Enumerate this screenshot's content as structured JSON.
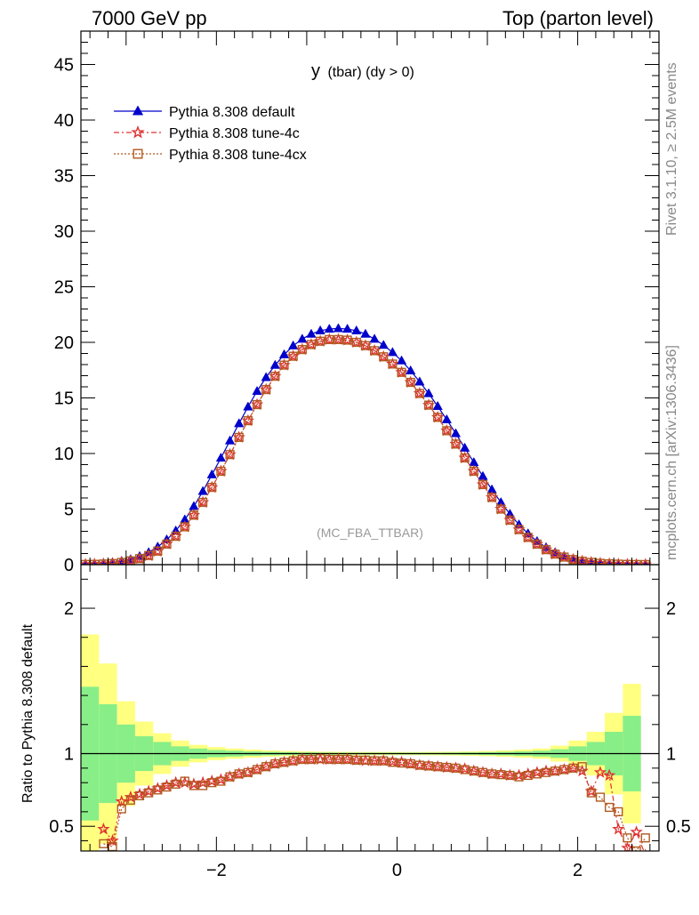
{
  "header": {
    "left": "7000 GeV pp",
    "right": "Top (parton level)"
  },
  "side_labels": {
    "rivet": "Rivet 3.1.10, ≥ 2.5M events",
    "mcplots": "mcplots.cern.ch [arXiv:1306.3436]"
  },
  "chart_data": [
    {
      "type": "line",
      "panel": "main",
      "title": "y (tbar) (dy > 0)",
      "title_main": "y",
      "title_sub": "(tbar) (dy > 0)",
      "annotation": "(MC_FBA_TTBAR)",
      "xlabel": "",
      "ylabel": "",
      "xlim": [
        -3.5,
        2.9
      ],
      "ylim": [
        0,
        48
      ],
      "yticks": [
        0,
        5,
        10,
        15,
        20,
        25,
        30,
        35,
        40,
        45
      ],
      "xticks": [
        -2,
        0,
        2
      ],
      "legend_position": "top-left",
      "x": [
        -3.45,
        -3.35,
        -3.25,
        -3.15,
        -3.05,
        -2.95,
        -2.85,
        -2.75,
        -2.65,
        -2.55,
        -2.45,
        -2.35,
        -2.25,
        -2.15,
        -2.05,
        -1.95,
        -1.85,
        -1.75,
        -1.65,
        -1.55,
        -1.45,
        -1.35,
        -1.25,
        -1.15,
        -1.05,
        -0.95,
        -0.85,
        -0.75,
        -0.65,
        -0.55,
        -0.45,
        -0.35,
        -0.25,
        -0.15,
        -0.05,
        0.05,
        0.15,
        0.25,
        0.35,
        0.45,
        0.55,
        0.65,
        0.75,
        0.85,
        0.95,
        1.05,
        1.15,
        1.25,
        1.35,
        1.45,
        1.55,
        1.65,
        1.75,
        1.85,
        1.95,
        2.05,
        2.15,
        2.25,
        2.35,
        2.45,
        2.55,
        2.65,
        2.75
      ],
      "series": [
        {
          "name": "Pythia 8.308 default",
          "color": "#0000cc",
          "marker": "triangle",
          "values": [
            0.05,
            0.08,
            0.13,
            0.2,
            0.32,
            0.48,
            0.75,
            1.1,
            1.6,
            2.25,
            3.05,
            4.05,
            5.25,
            6.6,
            8.1,
            9.6,
            11.15,
            12.7,
            14.2,
            15.6,
            16.85,
            17.95,
            18.9,
            19.7,
            20.3,
            20.75,
            21.05,
            21.2,
            21.25,
            21.2,
            21.05,
            20.75,
            20.3,
            19.75,
            19.1,
            18.35,
            17.45,
            16.45,
            15.4,
            14.25,
            13.05,
            11.8,
            10.5,
            9.2,
            7.95,
            6.75,
            5.6,
            4.55,
            3.6,
            2.8,
            2.1,
            1.55,
            1.1,
            0.78,
            0.53,
            0.36,
            0.24,
            0.16,
            0.1,
            0.065,
            0.04,
            0.025,
            0.015
          ]
        },
        {
          "name": "Pythia 8.308 tune-4c",
          "color": "#e03030",
          "marker": "star",
          "values": [
            0.02,
            0.03,
            0.06,
            0.1,
            0.2,
            0.33,
            0.53,
            0.8,
            1.2,
            1.85,
            2.55,
            3.4,
            4.45,
            5.6,
            6.95,
            8.4,
            9.9,
            11.45,
            12.95,
            14.4,
            15.75,
            16.95,
            17.95,
            18.75,
            19.35,
            19.8,
            20.1,
            20.25,
            20.25,
            20.2,
            20.0,
            19.7,
            19.25,
            18.7,
            18.05,
            17.3,
            16.4,
            15.4,
            14.35,
            13.25,
            12.05,
            10.85,
            9.6,
            8.4,
            7.2,
            6.05,
            5.0,
            4.0,
            3.15,
            2.45,
            1.85,
            1.35,
            0.95,
            0.68,
            0.46,
            0.31,
            0.2,
            0.12,
            0.075,
            0.045,
            0.025,
            0.015,
            0.01
          ]
        },
        {
          "name": "Pythia 8.308 tune-4cx",
          "color": "#b05a20",
          "marker": "square",
          "values": [
            0.02,
            0.03,
            0.06,
            0.1,
            0.2,
            0.34,
            0.54,
            0.82,
            1.22,
            1.85,
            2.55,
            3.4,
            4.45,
            5.6,
            6.95,
            8.4,
            9.9,
            11.45,
            12.95,
            14.4,
            15.75,
            16.95,
            17.95,
            18.75,
            19.35,
            19.8,
            20.1,
            20.25,
            20.25,
            20.2,
            20.0,
            19.7,
            19.25,
            18.7,
            18.05,
            17.3,
            16.4,
            15.4,
            14.35,
            13.25,
            12.05,
            10.85,
            9.6,
            8.4,
            7.2,
            6.05,
            5.0,
            4.0,
            3.15,
            2.45,
            1.85,
            1.35,
            0.95,
            0.68,
            0.46,
            0.31,
            0.2,
            0.12,
            0.075,
            0.045,
            0.025,
            0.015,
            0.01
          ]
        }
      ]
    },
    {
      "type": "line",
      "panel": "ratio",
      "title": "",
      "xlabel": "",
      "ylabel": "Ratio to Pythia 8.308 default",
      "xlim": [
        -3.5,
        2.9
      ],
      "ylim": [
        0.33,
        2.3
      ],
      "yticks": [
        0.5,
        1,
        2
      ],
      "xticks": [
        -2,
        0,
        2
      ],
      "band_x_edges": [
        -3.5,
        -3.3,
        -3.1,
        -2.9,
        -2.7,
        -2.5,
        -2.3,
        -2.1,
        -1.9,
        -1.7,
        -1.5,
        -1.3,
        -1.1,
        -0.9,
        -0.7,
        -0.5,
        -0.3,
        -0.1,
        0.1,
        0.3,
        0.5,
        0.7,
        0.9,
        1.1,
        1.3,
        1.5,
        1.7,
        1.9,
        2.1,
        2.3,
        2.5,
        2.7
      ],
      "band_green_halfwidth": [
        0.46,
        0.34,
        0.2,
        0.12,
        0.08,
        0.05,
        0.035,
        0.025,
        0.02,
        0.015,
        0.012,
        0.01,
        0.008,
        0.007,
        0.006,
        0.006,
        0.006,
        0.006,
        0.006,
        0.006,
        0.007,
        0.008,
        0.01,
        0.012,
        0.015,
        0.02,
        0.03,
        0.05,
        0.08,
        0.15,
        0.26
      ],
      "band_yellow_halfwidth": [
        0.82,
        0.62,
        0.36,
        0.22,
        0.14,
        0.09,
        0.06,
        0.045,
        0.035,
        0.028,
        0.022,
        0.018,
        0.015,
        0.013,
        0.012,
        0.011,
        0.011,
        0.011,
        0.011,
        0.012,
        0.013,
        0.015,
        0.018,
        0.022,
        0.028,
        0.035,
        0.055,
        0.09,
        0.15,
        0.28,
        0.48
      ],
      "series": [
        {
          "name": "Pythia 8.308 tune-4c",
          "color": "#e03030",
          "marker": "star",
          "values": [
            null,
            null,
            0.48,
            0.4,
            0.67,
            0.7,
            0.72,
            0.74,
            0.76,
            0.78,
            0.8,
            0.8,
            0.79,
            0.8,
            0.81,
            0.82,
            0.84,
            0.86,
            0.87,
            0.89,
            0.91,
            0.93,
            0.94,
            0.95,
            0.96,
            0.96,
            0.96,
            0.96,
            0.96,
            0.96,
            0.955,
            0.95,
            0.95,
            0.95,
            0.945,
            0.94,
            0.93,
            0.92,
            0.915,
            0.91,
            0.905,
            0.9,
            0.895,
            0.88,
            0.87,
            0.86,
            0.86,
            0.85,
            0.85,
            0.86,
            0.87,
            0.88,
            0.88,
            0.89,
            0.9,
            0.88,
            0.74,
            0.87,
            0.85,
            0.48,
            0.35,
            0.46,
            0.3
          ]
        },
        {
          "name": "Pythia 8.308 tune-4cx",
          "color": "#b05a20",
          "marker": "square",
          "values": [
            null,
            null,
            0.38,
            0.36,
            0.62,
            0.68,
            0.71,
            0.73,
            0.75,
            0.77,
            0.79,
            0.81,
            0.78,
            0.78,
            0.8,
            0.81,
            0.84,
            0.86,
            0.87,
            0.89,
            0.91,
            0.93,
            0.94,
            0.95,
            0.96,
            0.96,
            0.965,
            0.96,
            0.96,
            0.96,
            0.955,
            0.955,
            0.95,
            0.95,
            0.94,
            0.935,
            0.93,
            0.92,
            0.915,
            0.91,
            0.905,
            0.9,
            0.89,
            0.88,
            0.87,
            0.86,
            0.855,
            0.85,
            0.84,
            0.85,
            0.86,
            0.87,
            0.88,
            0.89,
            0.9,
            0.91,
            0.73,
            0.7,
            0.63,
            0.6,
            0.42,
            0.33,
            0.42
          ]
        }
      ]
    }
  ]
}
